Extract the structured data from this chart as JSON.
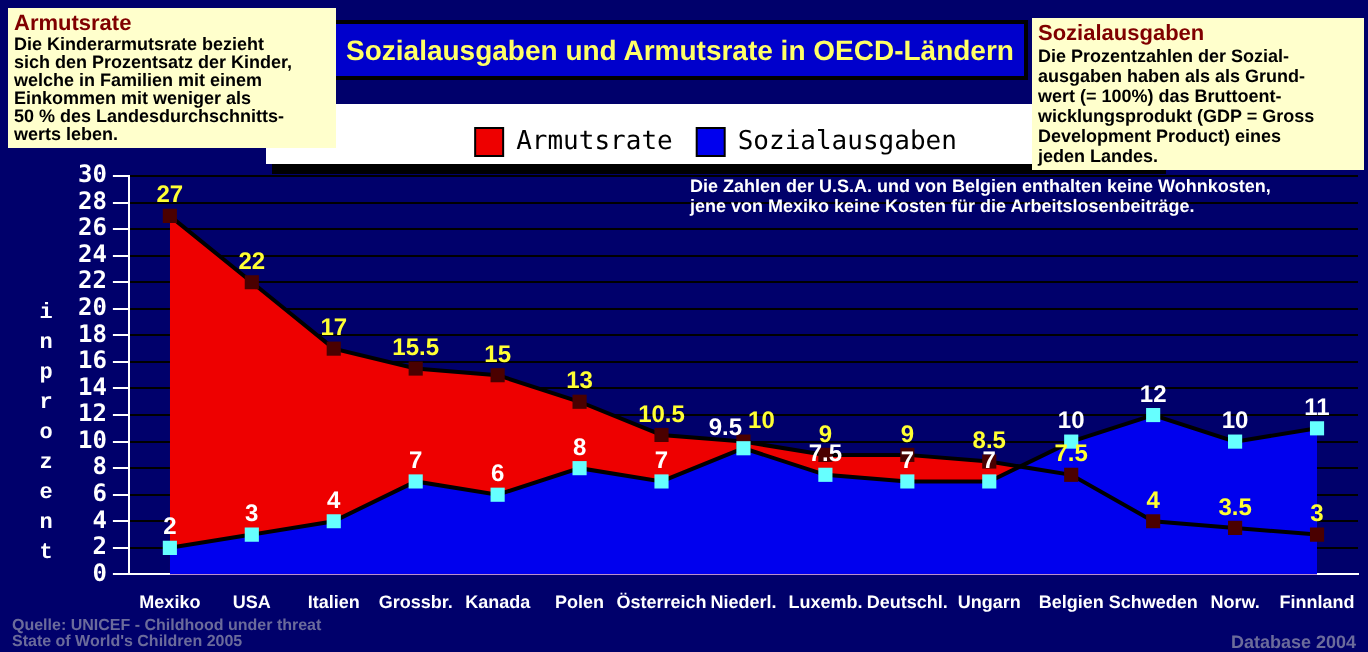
{
  "chart_data": {
    "type": "area",
    "title": "Sozialausgaben und Armutsrate in OECD-Ländern",
    "ylabel": "in prozent",
    "categories": [
      "Mexiko",
      "USA",
      "Italien",
      "Grossbr.",
      "Kanada",
      "Polen",
      "Österreich",
      "Niederl.",
      "Luxemb.",
      "Deutschl.",
      "Ungarn",
      "Belgien",
      "Schweden",
      "Norw.",
      "Finnland"
    ],
    "series": [
      {
        "name": "Armutsrate",
        "color": "#ee0000",
        "values": [
          27,
          22,
          17,
          15.5,
          15,
          13,
          10.5,
          10,
          9,
          9,
          8.5,
          7.5,
          4,
          3.5,
          3
        ]
      },
      {
        "name": "Sozialausgaben",
        "color": "#0000ee",
        "values": [
          2,
          3,
          4,
          7,
          6,
          8,
          7,
          9.5,
          7.5,
          7,
          7,
          10,
          12,
          10,
          11
        ]
      }
    ],
    "ylim": [
      0,
      30
    ],
    "yticks": [
      0,
      2,
      4,
      6,
      8,
      10,
      12,
      14,
      16,
      18,
      20,
      22,
      24,
      26,
      28,
      30
    ],
    "grid": "y",
    "legend": "top",
    "marker": "square",
    "data_labels": true,
    "annotations": [
      "Armutsrate\nDie Kinderarmutsrate bezieht\nsich den Prozentsatz der Kinder,\nwelche in Familien mit einem\nEinkommen mit weniger als\n50 % des Landesdurchschnitts-\nwerts leben.",
      "Sozialausgaben\nDie Prozentzahlen der Sozial-\nausgaben haben als als Grund-\nwert (= 100%) das Bruttoent-\nwicklungsprodukt (GDP = Gross\nDevelopment Product) eines\njeden Landes.",
      "Die Zahlen der U.S.A. und von Belgien enthalten keine Wohnkosten,\njene von Mexiko keine Kosten für die Arbeitslosenbeiträge.",
      "Quelle: UNICEF - Childhood under threat\nState of World's Children 2005",
      "Database 2004"
    ]
  }
}
